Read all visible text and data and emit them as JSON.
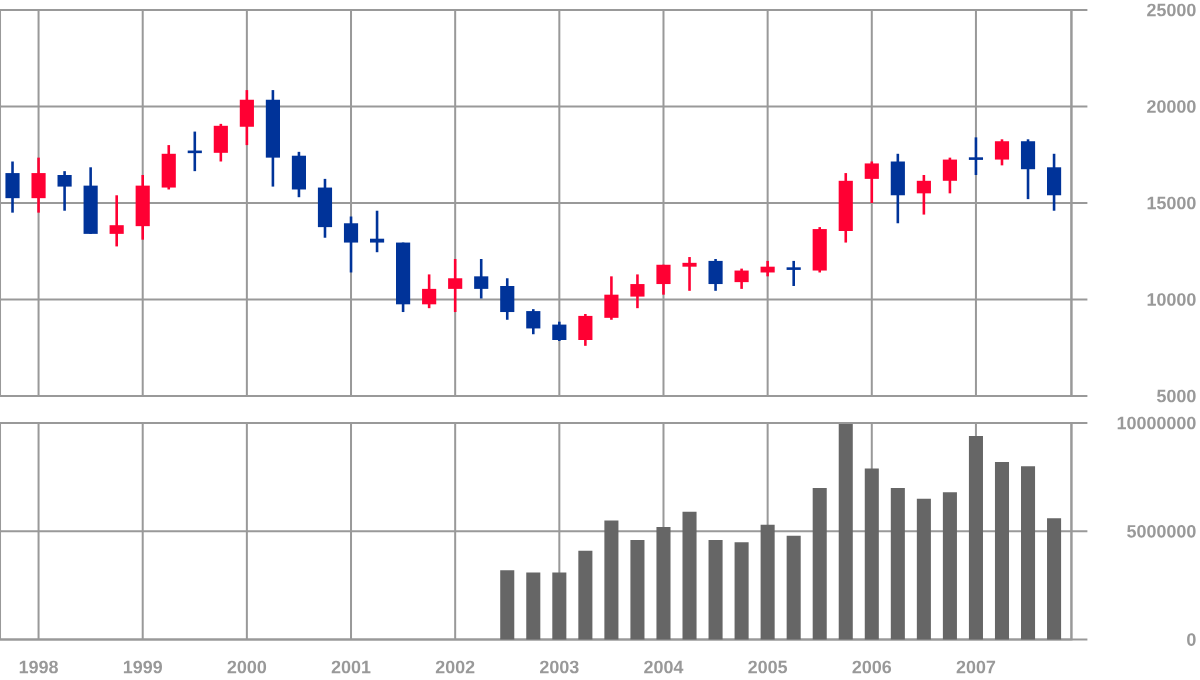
{
  "chart_data": [
    {
      "type": "candlestick",
      "x": [
        "1997-10",
        "1998-01",
        "1998-04",
        "1998-07",
        "1998-10",
        "1999-01",
        "1999-04",
        "1999-07",
        "1999-10",
        "2000-01",
        "2000-04",
        "2000-07",
        "2000-10",
        "2001-01",
        "2001-04",
        "2001-07",
        "2001-10",
        "2002-01",
        "2002-04",
        "2002-07",
        "2002-10",
        "2003-01",
        "2003-04",
        "2003-07",
        "2003-10",
        "2004-01",
        "2004-04",
        "2004-07",
        "2004-10",
        "2005-01",
        "2005-04",
        "2005-07",
        "2005-10",
        "2006-01",
        "2006-04",
        "2006-07",
        "2006-10",
        "2007-01",
        "2007-04",
        "2007-07",
        "2007-10"
      ],
      "ohlc": [
        [
          16550,
          17150,
          14500,
          15250
        ],
        [
          15250,
          17350,
          14500,
          16550
        ],
        [
          16450,
          16650,
          14600,
          15850
        ],
        [
          15900,
          16850,
          13400,
          13400
        ],
        [
          13400,
          15400,
          12750,
          13850
        ],
        [
          13800,
          16450,
          13100,
          15900
        ],
        [
          15800,
          18000,
          15700,
          17550
        ],
        [
          17650,
          18700,
          16650,
          17650
        ],
        [
          17600,
          19100,
          17150,
          19000
        ],
        [
          18950,
          20850,
          18000,
          20350
        ],
        [
          20350,
          20850,
          15850,
          17350
        ],
        [
          17450,
          17650,
          15300,
          15700
        ],
        [
          15800,
          16250,
          13200,
          13750
        ],
        [
          13950,
          14300,
          11400,
          12950
        ],
        [
          13150,
          14600,
          12450,
          12950
        ],
        [
          12950,
          12950,
          9350,
          9750
        ],
        [
          9750,
          11300,
          9550,
          10550
        ],
        [
          10550,
          12100,
          9350,
          11100
        ],
        [
          11200,
          12100,
          10050,
          10550
        ],
        [
          10700,
          11100,
          8950,
          9350
        ],
        [
          9400,
          9500,
          8200,
          8500
        ],
        [
          8700,
          8850,
          7850,
          7900
        ],
        [
          7900,
          9250,
          7600,
          9150
        ],
        [
          9050,
          11200,
          8950,
          10250
        ],
        [
          10150,
          11300,
          9550,
          10800
        ],
        [
          10800,
          11800,
          10250,
          11800
        ],
        [
          11700,
          12200,
          10450,
          11900
        ],
        [
          12000,
          12100,
          10450,
          10800
        ],
        [
          10900,
          11600,
          10550,
          11500
        ],
        [
          11400,
          12000,
          11200,
          11700
        ],
        [
          11600,
          12000,
          10700,
          11600
        ],
        [
          11500,
          13750,
          11400,
          13650
        ],
        [
          13550,
          16550,
          12950,
          16150
        ],
        [
          16250,
          17150,
          15000,
          17050
        ],
        [
          17150,
          17550,
          13950,
          15400
        ],
        [
          15500,
          16450,
          14400,
          16150
        ],
        [
          16150,
          17350,
          15500,
          17250
        ],
        [
          17300,
          18400,
          16450,
          17300
        ],
        [
          17250,
          18300,
          16950,
          18200
        ],
        [
          18200,
          18300,
          15200,
          16750
        ],
        [
          16850,
          17550,
          14600,
          15400
        ]
      ],
      "colors": [
        "#003399",
        "#ff0033",
        "#003399",
        "#003399",
        "#ff0033",
        "#ff0033",
        "#ff0033",
        "#003399",
        "#ff0033",
        "#ff0033",
        "#003399",
        "#003399",
        "#003399",
        "#003399",
        "#003399",
        "#003399",
        "#ff0033",
        "#ff0033",
        "#003399",
        "#003399",
        "#003399",
        "#003399",
        "#ff0033",
        "#ff0033",
        "#ff0033",
        "#ff0033",
        "#ff0033",
        "#003399",
        "#ff0033",
        "#ff0033",
        "#003399",
        "#ff0033",
        "#ff0033",
        "#ff0033",
        "#003399",
        "#ff0033",
        "#ff0033",
        "#003399",
        "#ff0033",
        "#003399",
        "#003399"
      ],
      "xlim": [
        "1997-08-18",
        "2007-12-01"
      ],
      "xticks": [
        "1998",
        "1999",
        "2000",
        "2001",
        "2002",
        "2003",
        "2004",
        "2005",
        "2006",
        "2007"
      ],
      "ylim": [
        5000,
        25000
      ],
      "yticks": [
        5000,
        10000,
        15000,
        20000,
        25000
      ],
      "grid": true,
      "tick_labels": "y"
    },
    {
      "type": "bar",
      "x": [
        "2002-07",
        "2002-10",
        "2003-01",
        "2003-04",
        "2003-07",
        "2003-10",
        "2004-01",
        "2004-04",
        "2004-07",
        "2004-10",
        "2005-01",
        "2005-04",
        "2005-07",
        "2005-10",
        "2006-01",
        "2006-04",
        "2006-07",
        "2006-10",
        "2007-01",
        "2007-04",
        "2007-07",
        "2007-10"
      ],
      "values": [
        3200000,
        3100000,
        3100000,
        4100000,
        5500000,
        4600000,
        5200000,
        5900000,
        4600000,
        4500000,
        5300000,
        4800000,
        7000000,
        10000000,
        7900000,
        7000000,
        6500000,
        6800000,
        9400000,
        8200000,
        8000000,
        5600000
      ],
      "color": "#666666",
      "xlim": [
        "1997-08-18",
        "2007-12-01"
      ],
      "xticks": [
        "1998",
        "1999",
        "2000",
        "2001",
        "2002",
        "2003",
        "2004",
        "2005",
        "2006",
        "2007"
      ],
      "ylim": [
        0,
        10000000
      ],
      "yticks": [
        0,
        5000000,
        10000000
      ],
      "grid": true
    }
  ]
}
